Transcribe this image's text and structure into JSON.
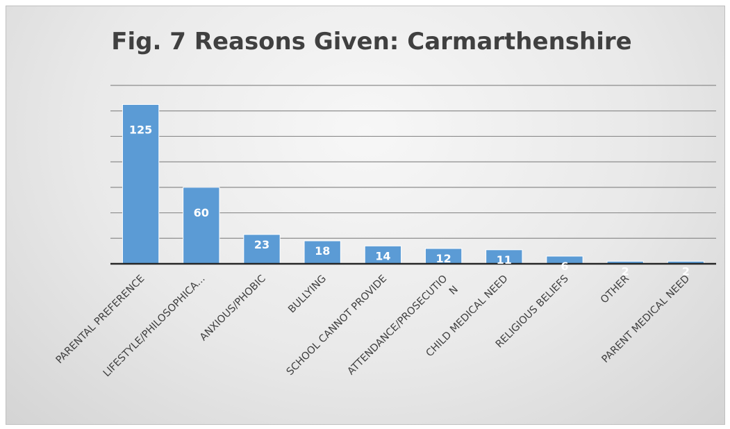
{
  "chart_data": {
    "type": "bar",
    "title": "Fig. 7 Reasons Given: Carmarthenshire",
    "xlabel": "",
    "ylabel": "",
    "categories": [
      [
        "PARENTAL PREFERENCE"
      ],
      [
        "LIFESTYLE/PHILOSOPHICA..."
      ],
      [
        "ANXIOUS/PHOBIC"
      ],
      [
        "BULLYING"
      ],
      [
        "SCHOOL CANNOT PROVIDE"
      ],
      [
        "ATTENDANCE/PROSECUTIO",
        "N"
      ],
      [
        "CHILD MEDICAL NEED"
      ],
      [
        "RELIGIOUS BELIEFS"
      ],
      [
        "OTHER"
      ],
      [
        "PARENT MEDICAL NEED"
      ]
    ],
    "values": [
      125,
      60,
      23,
      18,
      14,
      12,
      11,
      6,
      2,
      2
    ],
    "ylim": [
      0,
      140
    ],
    "grid": true,
    "legend": "none",
    "colors": {
      "bar": "#5b9bd5",
      "bar_edge": "#ffffff",
      "grid": "#8c8c8c",
      "axis": "#262626",
      "data_label": "#ffffff"
    }
  }
}
